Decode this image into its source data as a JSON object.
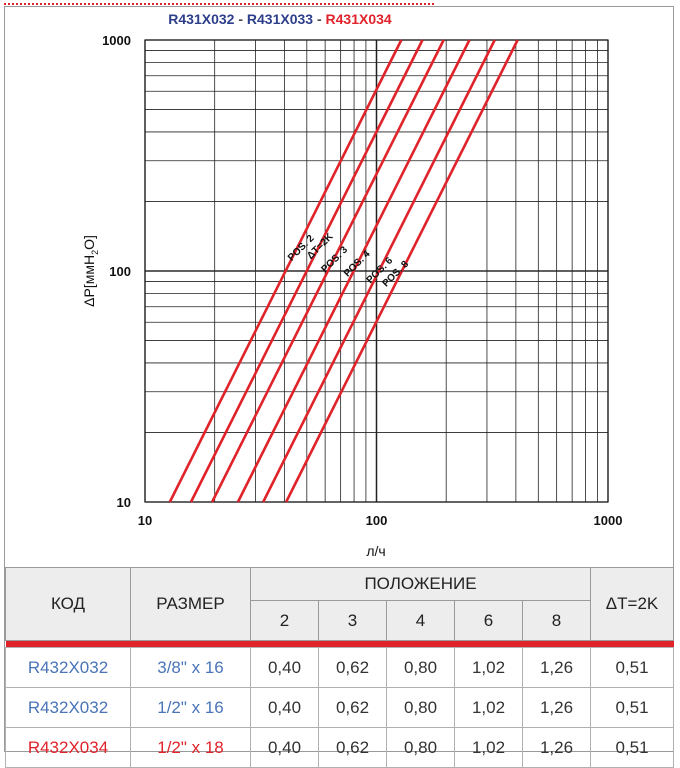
{
  "chart_data": {
    "type": "line",
    "title_parts": [
      {
        "text": "R431X032",
        "color": "#2d3f8a"
      },
      {
        "text": " - ",
        "color": "#4a4a4a"
      },
      {
        "text": "R431X033",
        "color": "#2d3f8a"
      },
      {
        "text": " - ",
        "color": "#4a4a4a"
      },
      {
        "text": "R431X034",
        "color": "#e0232a"
      }
    ],
    "xlabel": "л/ч",
    "ylabel": "ΔP[ммH",
    "ylabel_sub": "2",
    "ylabel_end": "O]",
    "x_scale": "log",
    "y_scale": "log",
    "xlim": [
      10,
      1000
    ],
    "ylim": [
      10,
      1000
    ],
    "x_ticks": [
      "10",
      "100",
      "1000"
    ],
    "y_ticks": [
      "10",
      "100",
      "1000"
    ],
    "grid": true,
    "line_color": "#e0232a",
    "series": [
      {
        "name": "POS. 2",
        "points": [
          [
            12.8,
            10
          ],
          [
            128,
            1000
          ]
        ]
      },
      {
        "name": "ΔT=2K",
        "points": [
          [
            15.8,
            10
          ],
          [
            158,
            1000
          ]
        ]
      },
      {
        "name": "POS. 3",
        "points": [
          [
            19.5,
            10
          ],
          [
            195,
            1000
          ]
        ]
      },
      {
        "name": "POS. 4",
        "points": [
          [
            25.2,
            10
          ],
          [
            252,
            1000
          ]
        ]
      },
      {
        "name": "POS. 6",
        "points": [
          [
            32.4,
            10
          ],
          [
            324,
            1000
          ]
        ]
      },
      {
        "name": "POS. 8",
        "points": [
          [
            40.7,
            10
          ],
          [
            407,
            1000
          ]
        ]
      }
    ],
    "label_anchors": [
      {
        "name": "POS. 2",
        "x": 43,
        "y": 110
      },
      {
        "name": "ΔT=2K",
        "x": 52,
        "y": 112
      },
      {
        "name": "POS. 3",
        "x": 60,
        "y": 98
      },
      {
        "name": "POS. 4",
        "x": 75,
        "y": 94
      },
      {
        "name": "POS. 6",
        "x": 94,
        "y": 88
      },
      {
        "name": "POS. 8",
        "x": 110,
        "y": 85
      }
    ]
  },
  "table": {
    "header": {
      "code": "КОД",
      "size": "РАЗМЕР",
      "position": "ПОЛОЖЕНИЕ",
      "dt": "ΔT=2K",
      "positions": [
        "2",
        "3",
        "4",
        "6",
        "8"
      ]
    },
    "rows": [
      {
        "code": "R432X032",
        "size": "3/8\" x 16",
        "values": [
          "0,40",
          "0,62",
          "0,80",
          "1,02",
          "1,26"
        ],
        "dt": "0,51",
        "color": "#4a74b8"
      },
      {
        "code": "R432X032",
        "size": "1/2\" x 16",
        "values": [
          "0,40",
          "0,62",
          "0,80",
          "1,02",
          "1,26"
        ],
        "dt": "0,51",
        "color": "#4a74b8"
      },
      {
        "code": "R432X034",
        "size": "1/2\" x 18",
        "values": [
          "0,40",
          "0,62",
          "0,80",
          "1,02",
          "1,26"
        ],
        "dt": "0,51",
        "color": "#e0232a"
      }
    ]
  }
}
